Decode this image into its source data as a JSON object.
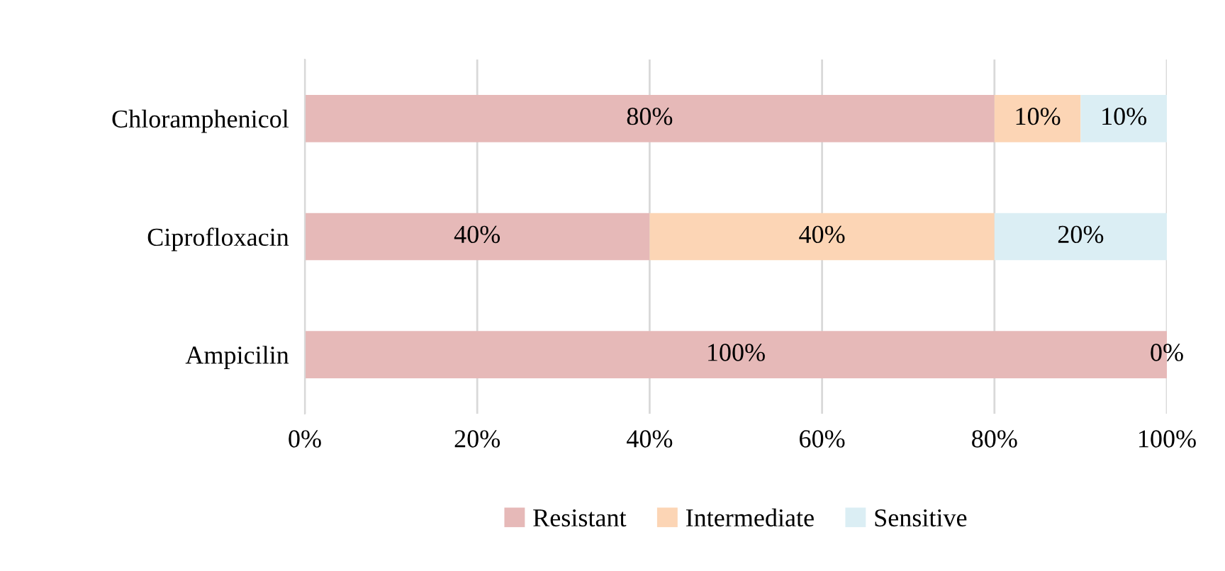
{
  "chart_data": {
    "type": "bar",
    "orientation": "horizontal",
    "stacked": true,
    "categories": [
      "Chloramphenicol",
      "Ciprofloxacin",
      "Ampicilin"
    ],
    "series": [
      {
        "name": "Resistant",
        "color": "#e6b9b8",
        "values": [
          80,
          40,
          100
        ],
        "value_labels": [
          "80%",
          "40%",
          "100%"
        ]
      },
      {
        "name": "Intermediate",
        "color": "#fcd5b5",
        "values": [
          10,
          40,
          0
        ],
        "value_labels": [
          "10%",
          "40%",
          null
        ]
      },
      {
        "name": "Sensitive",
        "color": "#dbeef4",
        "values": [
          10,
          20,
          0
        ],
        "value_labels": [
          "10%",
          "20%",
          "0%"
        ]
      }
    ],
    "xlim": [
      0,
      100
    ],
    "xticks": [
      {
        "value": 0,
        "label": "0%"
      },
      {
        "value": 20,
        "label": "20%"
      },
      {
        "value": 40,
        "label": "40%"
      },
      {
        "value": 60,
        "label": "60%"
      },
      {
        "value": 80,
        "label": "80%"
      },
      {
        "value": 100,
        "label": "100%"
      }
    ],
    "grid": "x",
    "legend": "bottom"
  }
}
